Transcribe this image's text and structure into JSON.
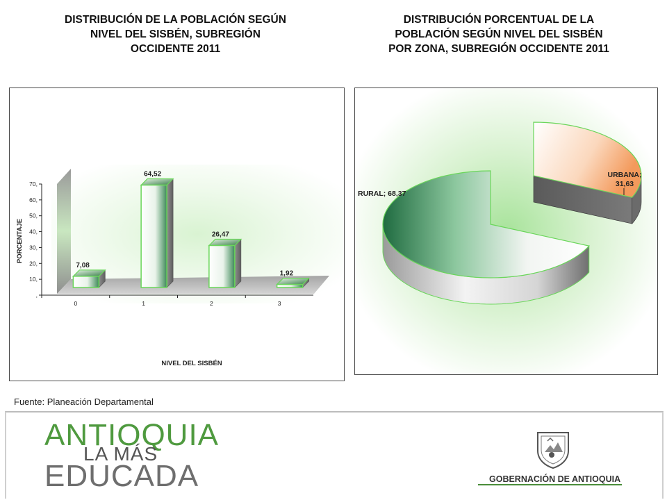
{
  "titles": {
    "left": [
      "DISTRIBUCIÓN DE LA POBLACIÓN SEGÚN",
      "NIVEL DEL SISBÉN, SUBREGIÓN",
      "OCCIDENTE 2011"
    ],
    "right": [
      "DISTRIBUCIÓN  PORCENTUAL DE LA",
      "POBLACIÓN SEGÚN NIVEL DEL SISBÉN",
      "POR ZONA, SUBREGIÓN OCCIDENTE  2011"
    ]
  },
  "source": "Fuente: Planeación Departamental",
  "brand": {
    "line1": "ANTIOQUIA",
    "line2": "LA MÁS",
    "line3": "EDUCADA"
  },
  "government": "GOBERNACIÓN DE ANTIOQUIA",
  "colors": {
    "green_border": "#6ad65a",
    "urbana": "#f5a66a",
    "rural": "#2e7f4e",
    "brand_green": "#4f9a3f"
  },
  "chart_data": [
    {
      "type": "bar",
      "title": "DISTRIBUCIÓN DE LA POBLACIÓN SEGÚN NIVEL DEL SISBÉN, SUBREGIÓN OCCIDENTE 2011",
      "categories": [
        "0",
        "1",
        "2",
        "3"
      ],
      "values": [
        7.08,
        64.52,
        26.47,
        1.92
      ],
      "value_labels": [
        "7,08",
        "64,52",
        "26,47",
        "1,92"
      ],
      "xlabel": "NIVEL DEL SISBÉN",
      "ylabel": "PORCENTAJE",
      "yticks": [
        ",",
        "10,",
        "20,",
        "30,",
        "40,",
        "50,",
        "60,",
        "70,"
      ],
      "ylim": [
        0,
        70
      ],
      "grid": false
    },
    {
      "type": "pie",
      "title": "DISTRIBUCIÓN  PORCENTUAL DE LA POBLACIÓN SEGÚN NIVEL DEL SISBÉN POR ZONA, SUBREGIÓN OCCIDENTE  2011",
      "slices": [
        {
          "name": "URBANA",
          "value": 31.63,
          "label": [
            "URBANA;",
            "31,63"
          ]
        },
        {
          "name": "RURAL",
          "value": 68.37,
          "label": [
            "RURAL; 68,37"
          ]
        }
      ]
    }
  ]
}
